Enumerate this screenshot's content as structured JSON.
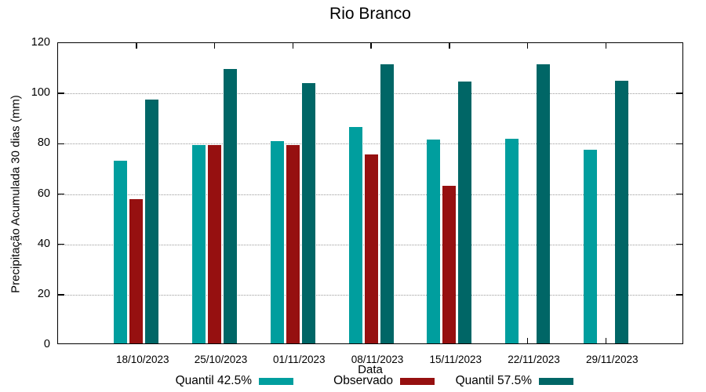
{
  "chart_data": {
    "type": "bar",
    "title": "Rio Branco",
    "xlabel": "Data",
    "ylabel": "Precipitação Acumulada 30 dias (mm)",
    "categories": [
      "18/10/2023",
      "25/10/2023",
      "01/11/2023",
      "08/11/2023",
      "15/11/2023",
      "22/11/2023",
      "29/11/2023"
    ],
    "series": [
      {
        "name": "Quantil 42.5%",
        "color": "#009E9E",
        "values": [
          72.5,
          79,
          80.5,
          86,
          81,
          81.5,
          77
        ]
      },
      {
        "name": "Observado",
        "color": "#961010",
        "values": [
          57.5,
          79,
          79,
          75,
          62.5,
          null,
          null
        ]
      },
      {
        "name": "Quantil 57.5%",
        "color": "#006666",
        "values": [
          97,
          109,
          103.5,
          111,
          104,
          111,
          104.5
        ]
      }
    ],
    "ylim": [
      0,
      120
    ],
    "yticks": [
      0,
      20,
      40,
      60,
      80,
      100,
      120
    ],
    "grid": "horizontal dotted gridlines at y ticks 20-100",
    "legend_position": "bottom-center",
    "axis_color": "#000000",
    "background_color": "#ffffff"
  }
}
